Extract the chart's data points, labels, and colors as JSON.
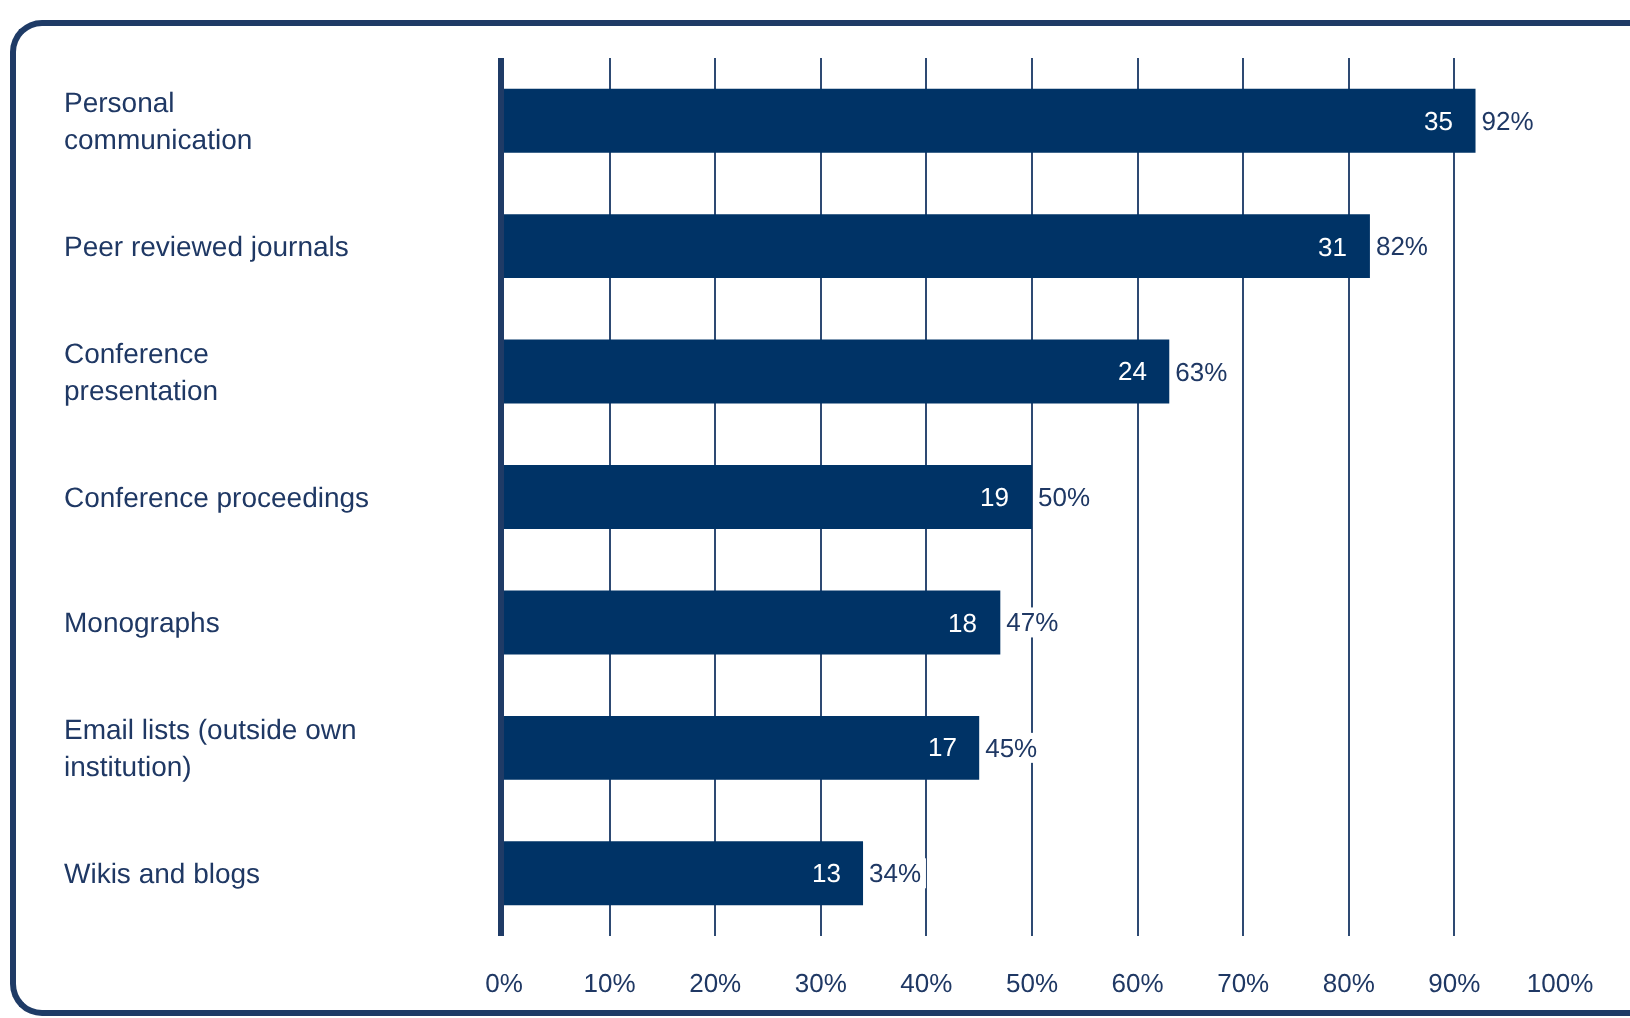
{
  "chart_data": {
    "type": "bar",
    "orientation": "horizontal",
    "categories": [
      "Personal\ncommunication",
      "Peer reviewed journals",
      "Conference\npresentation",
      "Conference proceedings",
      "Monographs",
      "Email lists (outside own\ninstitution)",
      "Wikis and blogs"
    ],
    "values": [
      92,
      82,
      63,
      50,
      47,
      45,
      34
    ],
    "value_labels": [
      "92%",
      "82%",
      "63%",
      "50%",
      "47%",
      "45%",
      "34%"
    ],
    "color": "#003366",
    "xlim": [
      0,
      100
    ],
    "xticks": [
      {
        "value": 0,
        "label": "0%"
      },
      {
        "value": 10,
        "label": "10%"
      },
      {
        "value": 20,
        "label": "20%"
      },
      {
        "value": 30,
        "label": "30%"
      },
      {
        "value": 40,
        "label": "40%"
      },
      {
        "value": 50,
        "label": "50%"
      },
      {
        "value": 60,
        "label": "60%"
      },
      {
        "value": 70,
        "label": "70%"
      },
      {
        "value": 80,
        "label": "80%"
      },
      {
        "value": 90,
        "label": "90%"
      },
      {
        "value": 100,
        "label": "100%"
      }
    ],
    "grid": "x",
    "annotations": [
      {
        "text": "35",
        "x": 92,
        "y": "Personal\ncommunication"
      },
      {
        "text": "31",
        "x": 82,
        "y": "Peer reviewed journals"
      },
      {
        "text": "24",
        "x": 63,
        "y": "Conference\npresentation"
      },
      {
        "text": "19",
        "x": 50,
        "y": "Conference proceedings"
      },
      {
        "text": "18",
        "x": 47,
        "y": "Monographs"
      },
      {
        "text": "17",
        "x": 45,
        "y": "Email lists (outside own\ninstitution)"
      },
      {
        "text": "13",
        "x": 34,
        "y": "Wikis and blogs"
      }
    ]
  }
}
